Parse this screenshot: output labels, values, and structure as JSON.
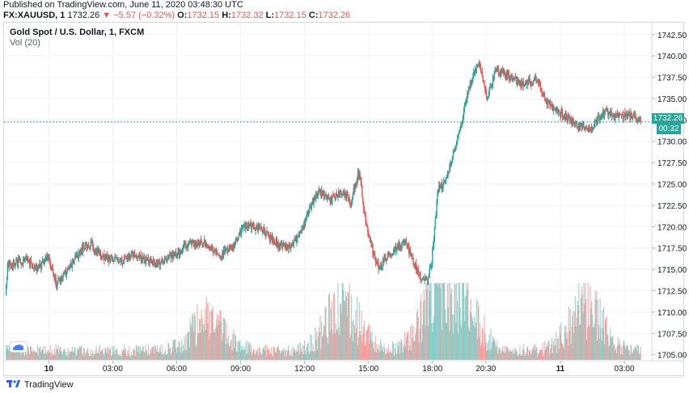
{
  "published": "Published on TradingView.com, June 11, 2020 03:48:30 UTC",
  "ohlc": {
    "symbol": "FX:XAUUSD, 1",
    "last": "1732.26",
    "arrow": "▼",
    "change": "−5.57 (−0.32%)",
    "o_label": "O:",
    "o": "1732.15",
    "h_label": "H:",
    "h": "1732.32",
    "l_label": "L:",
    "l": "1732.15",
    "c_label": "C:",
    "c": "1732.26"
  },
  "legend": {
    "title": "Gold Spot / U.S. Dollar, 1, FXCM",
    "volume": "Vol (20)"
  },
  "current": {
    "price": "1732.26",
    "countdown": "00:32"
  },
  "footer": {
    "brand": "TradingView"
  },
  "colors": {
    "up": "#26a69a",
    "down": "#ef5350",
    "grid": "#f0f3fa",
    "axis_text": "#131722"
  },
  "chart_data": {
    "type": "candlestick",
    "title": "Gold Spot / U.S. Dollar, 1, FXCM",
    "y_ticks": [
      "1742.50",
      "1740.00",
      "1737.50",
      "1735.00",
      "1732.50",
      "1730.00",
      "1727.50",
      "1725.00",
      "1722.50",
      "1720.00",
      "1717.50",
      "1715.00",
      "1712.50",
      "1710.00",
      "1707.50",
      "1705.00"
    ],
    "y_range": [
      1704.4,
      1743.9
    ],
    "x_ticks": [
      {
        "label": "10",
        "bold": true,
        "hour": 0
      },
      {
        "label": "03:00",
        "hour": 3
      },
      {
        "label": "06:00",
        "hour": 6
      },
      {
        "label": "09:00",
        "hour": 9
      },
      {
        "label": "12:00",
        "hour": 12
      },
      {
        "label": "15:00",
        "hour": 15
      },
      {
        "label": "18:00",
        "hour": 18
      },
      {
        "label": "20:30",
        "hour": 20.5
      },
      {
        "label": "11",
        "bold": true,
        "hour": 24
      },
      {
        "label": "03:00",
        "hour": 27
      }
    ],
    "x_range_hours": [
      -2.1,
      28.25
    ],
    "price_path": [
      {
        "t": -2.0,
        "p": 1712.0
      },
      {
        "t": -1.9,
        "p": 1715.6
      },
      {
        "t": -1.0,
        "p": 1716.0
      },
      {
        "t": -0.5,
        "p": 1715.0
      },
      {
        "t": 0.0,
        "p": 1716.5
      },
      {
        "t": 0.4,
        "p": 1713.2
      },
      {
        "t": 0.8,
        "p": 1714.5
      },
      {
        "t": 1.5,
        "p": 1717.0
      },
      {
        "t": 2.0,
        "p": 1718.0
      },
      {
        "t": 2.5,
        "p": 1716.5
      },
      {
        "t": 3.5,
        "p": 1716.0
      },
      {
        "t": 4.0,
        "p": 1716.8
      },
      {
        "t": 5.0,
        "p": 1715.6
      },
      {
        "t": 5.8,
        "p": 1716.5
      },
      {
        "t": 6.5,
        "p": 1717.8
      },
      {
        "t": 7.3,
        "p": 1718.2
      },
      {
        "t": 8.0,
        "p": 1716.6
      },
      {
        "t": 8.7,
        "p": 1717.8
      },
      {
        "t": 9.2,
        "p": 1720.2
      },
      {
        "t": 10.0,
        "p": 1719.8
      },
      {
        "t": 10.7,
        "p": 1718.0
      },
      {
        "t": 11.3,
        "p": 1717.5
      },
      {
        "t": 11.8,
        "p": 1719.0
      },
      {
        "t": 12.2,
        "p": 1721.5
      },
      {
        "t": 12.7,
        "p": 1724.3
      },
      {
        "t": 13.2,
        "p": 1723.0
      },
      {
        "t": 13.8,
        "p": 1724.0
      },
      {
        "t": 14.2,
        "p": 1722.8
      },
      {
        "t": 14.6,
        "p": 1726.6
      },
      {
        "t": 14.8,
        "p": 1722.0
      },
      {
        "t": 15.0,
        "p": 1719.6
      },
      {
        "t": 15.25,
        "p": 1717.0
      },
      {
        "t": 15.5,
        "p": 1715.2
      },
      {
        "t": 15.9,
        "p": 1716.6
      },
      {
        "t": 16.4,
        "p": 1717.5
      },
      {
        "t": 16.8,
        "p": 1718.2
      },
      {
        "t": 17.1,
        "p": 1716.0
      },
      {
        "t": 17.5,
        "p": 1714.0
      },
      {
        "t": 17.8,
        "p": 1713.6
      },
      {
        "t": 18.0,
        "p": 1716.0
      },
      {
        "t": 18.3,
        "p": 1724.5
      },
      {
        "t": 18.6,
        "p": 1725.0
      },
      {
        "t": 18.9,
        "p": 1727.4
      },
      {
        "t": 19.3,
        "p": 1731.0
      },
      {
        "t": 19.7,
        "p": 1736.0
      },
      {
        "t": 20.2,
        "p": 1739.2
      },
      {
        "t": 20.6,
        "p": 1735.0
      },
      {
        "t": 21.0,
        "p": 1738.5
      },
      {
        "t": 21.5,
        "p": 1737.6
      },
      {
        "t": 22.2,
        "p": 1736.8
      },
      {
        "t": 22.9,
        "p": 1737.2
      },
      {
        "t": 23.4,
        "p": 1734.5
      },
      {
        "t": 24.2,
        "p": 1733.0
      },
      {
        "t": 24.9,
        "p": 1731.8
      },
      {
        "t": 25.5,
        "p": 1731.5
      },
      {
        "t": 26.1,
        "p": 1733.6
      },
      {
        "t": 26.6,
        "p": 1732.8
      },
      {
        "t": 27.2,
        "p": 1733.2
      },
      {
        "t": 27.8,
        "p": 1732.26
      }
    ],
    "volume_hotspots": [
      {
        "t": 7.5,
        "level": 0.6
      },
      {
        "t": 13.8,
        "level": 0.9
      },
      {
        "t": 18.2,
        "level": 1.0
      },
      {
        "t": 19.5,
        "level": 0.7
      },
      {
        "t": 25.2,
        "level": 0.8
      }
    ]
  }
}
